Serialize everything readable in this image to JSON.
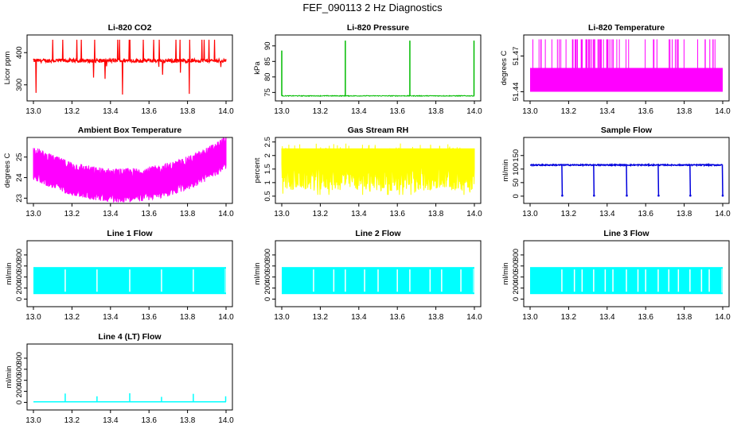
{
  "page_title": "FEF_090113  2 Hz Diagnostics",
  "colors": {
    "red": "#ff0000",
    "green": "#00bb00",
    "magenta": "#ff00ff",
    "yellow": "#ffff00",
    "blue": "#0000dd",
    "cyan": "#00ffff",
    "axis": "#000000",
    "background": "#ffffff"
  },
  "chart_data": [
    {
      "type": "line",
      "title": "Li-820 CO2",
      "ylabel": "Licor ppm",
      "xlim": [
        13.0,
        14.0
      ],
      "ylim": [
        260,
        445
      ],
      "xticks": [
        13.0,
        13.2,
        13.4,
        13.6,
        13.8,
        14.0
      ],
      "yticks": [
        300,
        400
      ],
      "color": "red",
      "series": [
        {
          "baseline": 375,
          "noise": 6,
          "spike_high": 440,
          "spike_low": 270,
          "density": "frequent"
        }
      ]
    },
    {
      "type": "line",
      "title": "Li-820 Pressure",
      "ylabel": "kPa",
      "xlim": [
        13.0,
        14.0
      ],
      "ylim": [
        73.3,
        92.5
      ],
      "xticks": [
        13.0,
        13.2,
        13.4,
        13.6,
        13.8,
        14.0
      ],
      "yticks": [
        75,
        80,
        85,
        90
      ],
      "color": "green",
      "series": [
        {
          "baseline": 73.9,
          "spikes": [
            {
              "x": 13.0,
              "y": 88.5
            },
            {
              "x": 13.33,
              "y": 91.7
            },
            {
              "x": 13.665,
              "y": 91.7
            },
            {
              "x": 13.998,
              "y": 91.7
            }
          ]
        }
      ]
    },
    {
      "type": "line",
      "title": "Li-820 Temperature",
      "ylabel": "degrees C",
      "xlim": [
        13.0,
        14.0
      ],
      "ylim": [
        51.435,
        51.485
      ],
      "xticks": [
        13.0,
        13.2,
        13.4,
        13.6,
        13.8,
        14.0
      ],
      "yticks": [
        51.44,
        51.47
      ],
      "ytick_labels": [
        "51.44",
        "51.47"
      ],
      "color": "magenta",
      "series": [
        {
          "low": 51.44,
          "high": 51.46,
          "spike_top": 51.484
        }
      ]
    },
    {
      "type": "line",
      "title": "Ambient Box Temperature",
      "ylabel": "degrees C",
      "xlim": [
        13.0,
        14.0
      ],
      "ylim": [
        22.9,
        25.8
      ],
      "xticks": [
        13.0,
        13.2,
        13.4,
        13.6,
        13.8,
        14.0
      ],
      "yticks": [
        23.0,
        24.0,
        25.0
      ],
      "color": "magenta",
      "series": [
        {
          "shape": "u-curve",
          "start": 24.8,
          "min": 23.7,
          "end": 25.3,
          "noise": 0.45
        }
      ]
    },
    {
      "type": "line",
      "title": "Gas Stream RH",
      "ylabel": "percent",
      "xlim": [
        13.0,
        14.0
      ],
      "ylim": [
        0.35,
        2.55
      ],
      "xticks": [
        13.0,
        13.2,
        13.4,
        13.6,
        13.8,
        14.0
      ],
      "yticks": [
        0.5,
        1.0,
        1.5,
        2.0,
        2.5
      ],
      "color": "yellow",
      "series": [
        {
          "upper": 2.25,
          "lower_mean": 1.2,
          "lower_min": 0.55
        }
      ]
    },
    {
      "type": "line",
      "title": "Sample Flow",
      "ylabel": "ml/min",
      "xlim": [
        13.0,
        14.0
      ],
      "ylim": [
        -15,
        205
      ],
      "xticks": [
        13.0,
        13.2,
        13.4,
        13.6,
        13.8,
        14.0
      ],
      "yticks": [
        0,
        50,
        100,
        150
      ],
      "color": "blue",
      "series": [
        {
          "baseline": 115,
          "drops": [
            13.165,
            13.33,
            13.5,
            13.665,
            13.83,
            13.998
          ]
        }
      ]
    },
    {
      "type": "line",
      "title": "Line 1 Flow",
      "ylabel": "ml/min",
      "xlim": [
        13.0,
        14.0
      ],
      "ylim": [
        -80,
        1000
      ],
      "xticks": [
        13.0,
        13.2,
        13.4,
        13.6,
        13.8,
        14.0
      ],
      "yticks": [
        0,
        200,
        400,
        600,
        800
      ],
      "color": "cyan",
      "series": [
        {
          "high": 580,
          "low": 90,
          "gaps": [
            13.165,
            13.33,
            13.5,
            13.665,
            13.83
          ]
        }
      ]
    },
    {
      "type": "line",
      "title": "Line 2 Flow",
      "ylabel": "ml/min",
      "xlim": [
        13.0,
        14.0
      ],
      "ylim": [
        -80,
        1000
      ],
      "xticks": [
        13.0,
        13.2,
        13.4,
        13.6,
        13.8,
        14.0
      ],
      "yticks": [
        0,
        200,
        400,
        600,
        800
      ],
      "color": "cyan",
      "series": [
        {
          "high": 580,
          "low": 90,
          "gaps": [
            13.165,
            13.27,
            13.33,
            13.43,
            13.5,
            13.6,
            13.665,
            13.77,
            13.83,
            13.93
          ]
        }
      ]
    },
    {
      "type": "line",
      "title": "Line 3 Flow",
      "ylabel": "ml/min",
      "xlim": [
        13.0,
        14.0
      ],
      "ylim": [
        -80,
        1000
      ],
      "xticks": [
        13.0,
        13.2,
        13.4,
        13.6,
        13.8,
        14.0
      ],
      "yticks": [
        0,
        200,
        400,
        600,
        800
      ],
      "color": "cyan",
      "series": [
        {
          "high": 580,
          "low": 90,
          "gaps": [
            13.165,
            13.23,
            13.27,
            13.33,
            13.39,
            13.43,
            13.5,
            13.56,
            13.6,
            13.665,
            13.72,
            13.77,
            13.83,
            13.89,
            13.93
          ]
        }
      ]
    },
    {
      "type": "line",
      "title": "Line 4 (LT) Flow",
      "ylabel": "ml/min",
      "xlim": [
        13.0,
        14.0
      ],
      "ylim": [
        -80,
        1000
      ],
      "xticks": [
        13.0,
        13.2,
        13.4,
        13.6,
        13.8,
        14.0
      ],
      "yticks": [
        0,
        200,
        400,
        600,
        800
      ],
      "color": "cyan",
      "series": [
        {
          "baseline": 10,
          "spikes": [
            {
              "x": 13.165,
              "y": 160
            },
            {
              "x": 13.33,
              "y": 110
            },
            {
              "x": 13.5,
              "y": 165
            },
            {
              "x": 13.665,
              "y": 100
            },
            {
              "x": 13.83,
              "y": 155
            },
            {
              "x": 13.998,
              "y": 110
            }
          ]
        }
      ]
    }
  ]
}
